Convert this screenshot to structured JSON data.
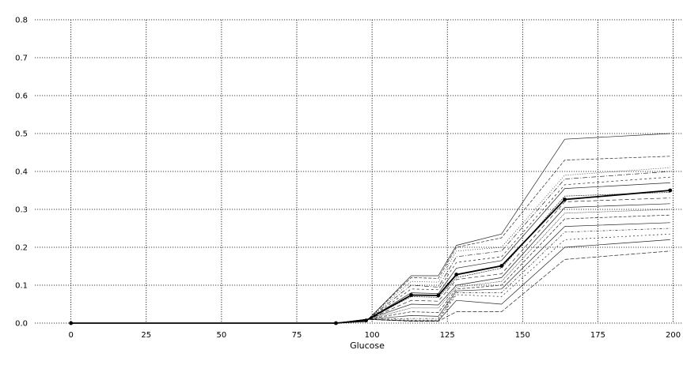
{
  "chart_data": {
    "type": "line",
    "title": "",
    "xlabel": "Glucose",
    "ylabel": "",
    "xlim": [
      -12,
      203
    ],
    "ylim": [
      0,
      0.8
    ],
    "x_ticks": [
      0,
      25,
      50,
      75,
      100,
      125,
      150,
      175,
      200
    ],
    "y_ticks": [
      0.0,
      0.1,
      0.2,
      0.3,
      0.4,
      0.5,
      0.6,
      0.7,
      0.8
    ],
    "x_tick_labels": [
      "0",
      "25",
      "50",
      "75",
      "100",
      "125",
      "150",
      "175",
      "200"
    ],
    "y_tick_labels": [
      "0.0",
      "0.1",
      "0.2",
      "0.3",
      "0.4",
      "0.5",
      "0.6",
      "0.7",
      "0.8"
    ],
    "grid": true,
    "x": [
      0,
      88,
      98,
      113,
      122,
      128,
      143,
      164,
      199
    ],
    "average": {
      "values": [
        0.0,
        0.0,
        0.007,
        0.074,
        0.073,
        0.128,
        0.151,
        0.326,
        0.35
      ],
      "color": "#000000",
      "markers": true
    },
    "individual_curves": {
      "color": "#000000",
      "series": [
        {
          "values": [
            0.0,
            0.0,
            0.004,
            0.125,
            0.125,
            0.205,
            0.235,
            0.485,
            0.5
          ]
        },
        {
          "values": [
            0.0,
            0.0,
            0.005,
            0.12,
            0.118,
            0.2,
            0.225,
            0.43,
            0.44
          ]
        },
        {
          "values": [
            0.0,
            0.0,
            0.006,
            0.11,
            0.108,
            0.19,
            0.2,
            0.39,
            0.41
          ]
        },
        {
          "values": [
            0.0,
            0.0,
            0.006,
            0.1,
            0.095,
            0.175,
            0.19,
            0.38,
            0.4
          ]
        },
        {
          "values": [
            0.0,
            0.0,
            0.006,
            0.09,
            0.088,
            0.16,
            0.175,
            0.365,
            0.385
          ]
        },
        {
          "values": [
            0.0,
            0.0,
            0.007,
            0.08,
            0.078,
            0.145,
            0.165,
            0.355,
            0.37
          ]
        },
        {
          "values": [
            0.0,
            0.0,
            0.008,
            0.07,
            0.068,
            0.12,
            0.145,
            0.335,
            0.345
          ]
        },
        {
          "values": [
            0.0,
            0.0,
            0.008,
            0.06,
            0.058,
            0.115,
            0.13,
            0.32,
            0.33
          ]
        },
        {
          "values": [
            0.0,
            0.0,
            0.009,
            0.05,
            0.048,
            0.1,
            0.12,
            0.305,
            0.315
          ]
        },
        {
          "values": [
            0.0,
            0.0,
            0.009,
            0.04,
            0.04,
            0.095,
            0.11,
            0.29,
            0.3
          ]
        },
        {
          "values": [
            0.0,
            0.0,
            0.01,
            0.03,
            0.028,
            0.09,
            0.1,
            0.275,
            0.285
          ]
        },
        {
          "values": [
            0.0,
            0.0,
            0.01,
            0.02,
            0.018,
            0.085,
            0.09,
            0.255,
            0.265
          ]
        },
        {
          "values": [
            0.0,
            0.0,
            0.01,
            0.012,
            0.012,
            0.08,
            0.08,
            0.24,
            0.25
          ]
        },
        {
          "values": [
            0.0,
            0.0,
            0.01,
            0.008,
            0.008,
            0.075,
            0.07,
            0.22,
            0.235
          ]
        },
        {
          "values": [
            0.0,
            0.0,
            0.01,
            0.006,
            0.006,
            0.06,
            0.05,
            0.2,
            0.22
          ]
        },
        {
          "values": [
            0.0,
            0.0,
            0.01,
            0.005,
            0.005,
            0.03,
            0.03,
            0.168,
            0.19
          ]
        }
      ]
    }
  }
}
